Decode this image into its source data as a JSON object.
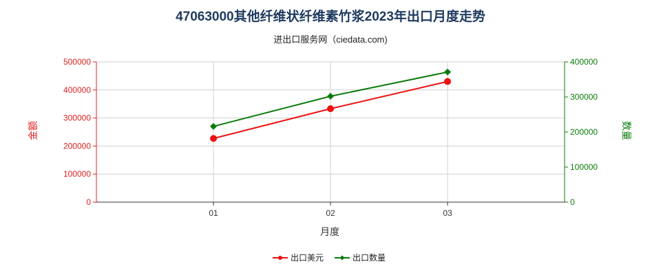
{
  "chart_data": {
    "type": "line",
    "title": "47063000其他纤维状纤维素竹浆2023年出口月度走势",
    "subtitle": "进出口服务网（ciedata.com)",
    "xlabel": "月度",
    "ylabel_left": "金额",
    "ylabel_right": "数量",
    "categories": [
      "01",
      "02",
      "03"
    ],
    "y_left": {
      "min": 0,
      "max": 500000,
      "ticks": [
        0,
        100000,
        200000,
        300000,
        400000,
        500000
      ]
    },
    "y_right": {
      "min": 0,
      "max": 400000,
      "ticks": [
        0,
        100000,
        200000,
        300000,
        400000
      ]
    },
    "series": [
      {
        "name": "出口美元",
        "axis": "left",
        "color": "#ee1111",
        "marker": "circle",
        "values": [
          227000,
          333000,
          430000
        ]
      },
      {
        "name": "出口数量",
        "axis": "right",
        "color": "#0a7a0a",
        "marker": "diamond",
        "values": [
          216000,
          302000,
          371000
        ]
      }
    ],
    "grid": true,
    "legend_position": "bottom-center"
  }
}
